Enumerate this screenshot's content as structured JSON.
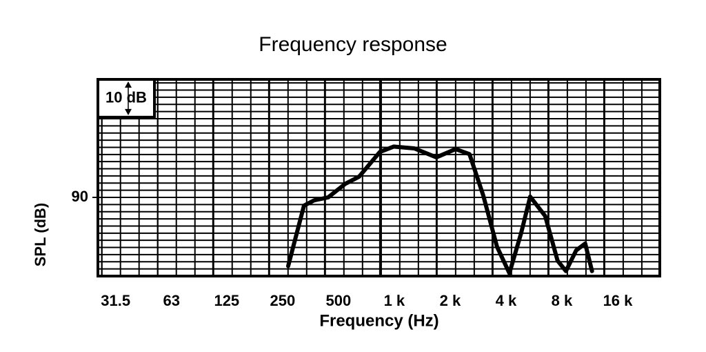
{
  "chart_data": {
    "type": "line",
    "title": "Frequency response",
    "xlabel": "Frequency (Hz)",
    "ylabel": "SPL (dB)",
    "annotation": "10 dB",
    "xscale": "log",
    "grid": true,
    "color": "#000000",
    "x": [
      318,
      387,
      440,
      522,
      646,
      767,
      992,
      1177,
      1521,
      2000,
      2541,
      3017,
      3576,
      4245,
      4950,
      5725,
      6407,
      7716,
      9000,
      9983,
      11340,
      12680,
      13800
    ],
    "values": [
      70.8,
      87.7,
      89.2,
      90,
      93.8,
      95.8,
      102.7,
      104.2,
      103.7,
      101.2,
      103.5,
      102.1,
      90.6,
      76.2,
      68.8,
      80,
      90.2,
      84.8,
      72.3,
      69.4,
      75.2,
      77.1,
      69.4
    ],
    "xlim": [
      30,
      32000
    ],
    "xticks": [
      31.5,
      63,
      125,
      250,
      500,
      {
        "value": 1000,
        "label": "1 k"
      },
      {
        "value": 2000,
        "label": "2 k"
      },
      {
        "value": 4000,
        "label": "4 k"
      },
      {
        "value": 8000,
        "label": "8 k"
      },
      {
        "value": 16000,
        "label": "16 k"
      }
    ],
    "ylim": [
      68,
      123
    ],
    "yticks": [
      90
    ]
  }
}
